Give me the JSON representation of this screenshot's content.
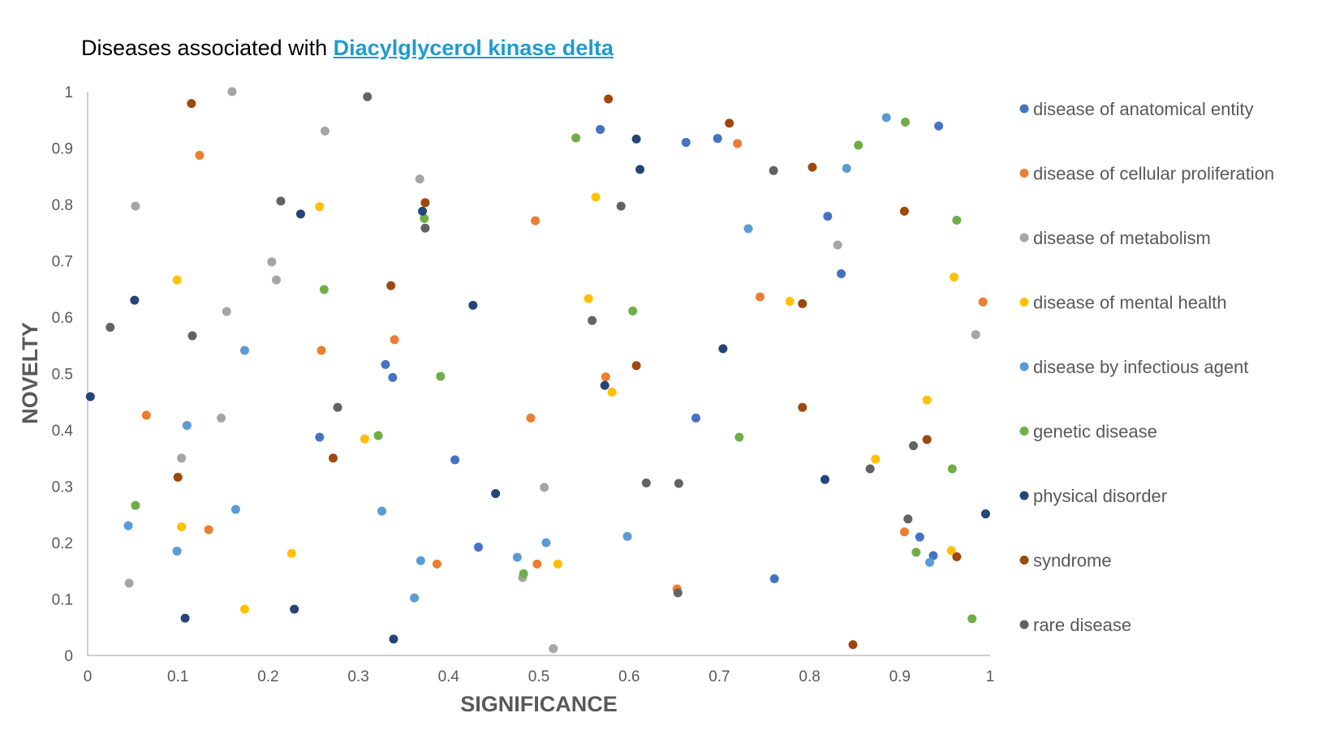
{
  "title": {
    "prefix": "Diseases associated with ",
    "link": "Diacylglycerol kinase delta"
  },
  "chart_data": {
    "type": "scatter",
    "xlabel": "SIGNIFICANCE",
    "ylabel": "NOVELTY",
    "xlim": [
      0,
      1
    ],
    "ylim": [
      0,
      1
    ],
    "xticks": [
      "0",
      "0.1",
      "0.2",
      "0.3",
      "0.4",
      "0.5",
      "0.6",
      "0.7",
      "0.8",
      "0.9",
      "1"
    ],
    "yticks": [
      "0",
      "0.1",
      "0.2",
      "0.3",
      "0.4",
      "0.5",
      "0.6",
      "0.7",
      "0.8",
      "0.9",
      "1"
    ],
    "grid": false,
    "legend_position": "right",
    "series": [
      {
        "name": "disease of anatomical entity",
        "color": "#4472c4",
        "points": [
          [
            0.257,
            0.387
          ],
          [
            0.33,
            0.516
          ],
          [
            0.338,
            0.493
          ],
          [
            0.407,
            0.347
          ],
          [
            0.433,
            0.192
          ],
          [
            0.568,
            0.933
          ],
          [
            0.663,
            0.91
          ],
          [
            0.698,
            0.917
          ],
          [
            0.674,
            0.421
          ],
          [
            0.761,
            0.136
          ],
          [
            0.82,
            0.779
          ],
          [
            0.835,
            0.677
          ],
          [
            0.922,
            0.21
          ],
          [
            0.937,
            0.177
          ],
          [
            0.943,
            0.939
          ]
        ]
      },
      {
        "name": "disease of cellular proliferation",
        "color": "#ed7d31",
        "points": [
          [
            0.065,
            0.426
          ],
          [
            0.124,
            0.887
          ],
          [
            0.134,
            0.223
          ],
          [
            0.259,
            0.541
          ],
          [
            0.34,
            0.56
          ],
          [
            0.387,
            0.162
          ],
          [
            0.491,
            0.421
          ],
          [
            0.496,
            0.771
          ],
          [
            0.498,
            0.162
          ],
          [
            0.574,
            0.494
          ],
          [
            0.653,
            0.118
          ],
          [
            0.72,
            0.908
          ],
          [
            0.745,
            0.636
          ],
          [
            0.905,
            0.219
          ],
          [
            0.992,
            0.627
          ]
        ]
      },
      {
        "name": "disease of metabolism",
        "color": "#a5a5a5",
        "points": [
          [
            0.046,
            0.128
          ],
          [
            0.053,
            0.797
          ],
          [
            0.104,
            0.35
          ],
          [
            0.148,
            0.421
          ],
          [
            0.154,
            0.61
          ],
          [
            0.16,
            1.0
          ],
          [
            0.204,
            0.698
          ],
          [
            0.209,
            0.666
          ],
          [
            0.263,
            0.93
          ],
          [
            0.368,
            0.845
          ],
          [
            0.482,
            0.138
          ],
          [
            0.506,
            0.298
          ],
          [
            0.516,
            0.012
          ],
          [
            0.831,
            0.728
          ],
          [
            0.984,
            0.569
          ]
        ]
      },
      {
        "name": "disease of mental health",
        "color": "#ffc000",
        "points": [
          [
            0.099,
            0.666
          ],
          [
            0.104,
            0.228
          ],
          [
            0.174,
            0.082
          ],
          [
            0.226,
            0.181
          ],
          [
            0.257,
            0.796
          ],
          [
            0.307,
            0.384
          ],
          [
            0.521,
            0.162
          ],
          [
            0.555,
            0.633
          ],
          [
            0.563,
            0.813
          ],
          [
            0.581,
            0.467
          ],
          [
            0.778,
            0.628
          ],
          [
            0.873,
            0.348
          ],
          [
            0.93,
            0.453
          ],
          [
            0.957,
            0.186
          ],
          [
            0.96,
            0.671
          ]
        ]
      },
      {
        "name": "disease by infectious agent",
        "color": "#5b9bd5",
        "points": [
          [
            0.045,
            0.23
          ],
          [
            0.099,
            0.185
          ],
          [
            0.11,
            0.408
          ],
          [
            0.164,
            0.259
          ],
          [
            0.174,
            0.541
          ],
          [
            0.326,
            0.256
          ],
          [
            0.362,
            0.102
          ],
          [
            0.369,
            0.168
          ],
          [
            0.476,
            0.174
          ],
          [
            0.508,
            0.2
          ],
          [
            0.598,
            0.211
          ],
          [
            0.732,
            0.757
          ],
          [
            0.841,
            0.864
          ],
          [
            0.885,
            0.954
          ],
          [
            0.933,
            0.165
          ]
        ]
      },
      {
        "name": "genetic disease",
        "color": "#70ad47",
        "points": [
          [
            0.053,
            0.266
          ],
          [
            0.262,
            0.649
          ],
          [
            0.322,
            0.39
          ],
          [
            0.373,
            0.775
          ],
          [
            0.391,
            0.495
          ],
          [
            0.483,
            0.145
          ],
          [
            0.541,
            0.918
          ],
          [
            0.604,
            0.611
          ],
          [
            0.722,
            0.387
          ],
          [
            0.854,
            0.905
          ],
          [
            0.906,
            0.946
          ],
          [
            0.918,
            0.183
          ],
          [
            0.958,
            0.331
          ],
          [
            0.963,
            0.772
          ],
          [
            0.98,
            0.065
          ]
        ]
      },
      {
        "name": "physical disorder",
        "color": "#264478",
        "points": [
          [
            0.003,
            0.459
          ],
          [
            0.052,
            0.63
          ],
          [
            0.108,
            0.066
          ],
          [
            0.229,
            0.082
          ],
          [
            0.236,
            0.783
          ],
          [
            0.339,
            0.029
          ],
          [
            0.371,
            0.788
          ],
          [
            0.427,
            0.621
          ],
          [
            0.452,
            0.287
          ],
          [
            0.573,
            0.479
          ],
          [
            0.608,
            0.916
          ],
          [
            0.612,
            0.862
          ],
          [
            0.704,
            0.544
          ],
          [
            0.817,
            0.312
          ],
          [
            0.995,
            0.251
          ]
        ]
      },
      {
        "name": "syndrome",
        "color": "#9e480e",
        "points": [
          [
            0.1,
            0.316
          ],
          [
            0.115,
            0.979
          ],
          [
            0.272,
            0.35
          ],
          [
            0.336,
            0.656
          ],
          [
            0.374,
            0.803
          ],
          [
            0.577,
            0.987
          ],
          [
            0.608,
            0.514
          ],
          [
            0.711,
            0.944
          ],
          [
            0.792,
            0.44
          ],
          [
            0.792,
            0.624
          ],
          [
            0.803,
            0.866
          ],
          [
            0.848,
            0.019
          ],
          [
            0.905,
            0.788
          ],
          [
            0.93,
            0.383
          ],
          [
            0.963,
            0.175
          ]
        ]
      },
      {
        "name": "rare disease",
        "color": "#636363",
        "points": [
          [
            0.025,
            0.582
          ],
          [
            0.116,
            0.567
          ],
          [
            0.214,
            0.806
          ],
          [
            0.277,
            0.44
          ],
          [
            0.31,
            0.991
          ],
          [
            0.374,
            0.758
          ],
          [
            0.559,
            0.594
          ],
          [
            0.591,
            0.797
          ],
          [
            0.619,
            0.306
          ],
          [
            0.654,
            0.111
          ],
          [
            0.655,
            0.305
          ],
          [
            0.76,
            0.86
          ],
          [
            0.867,
            0.331
          ],
          [
            0.909,
            0.242
          ],
          [
            0.915,
            0.372
          ]
        ]
      }
    ]
  }
}
